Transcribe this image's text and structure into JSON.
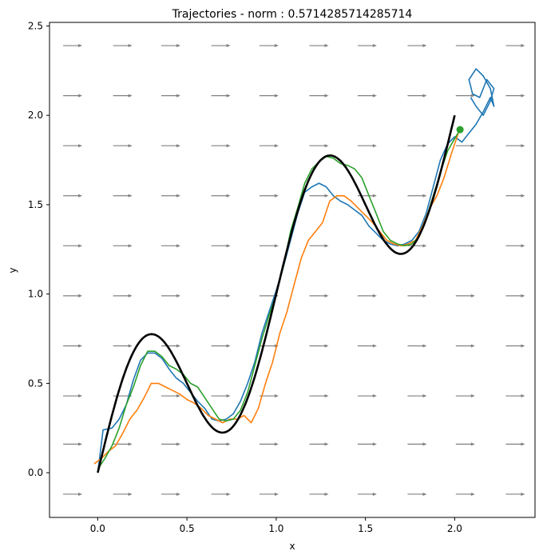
{
  "chart_data": {
    "type": "line",
    "title": "Trajectories - norm : 0.5714285714285714",
    "xlabel": "x",
    "ylabel": "y",
    "xlim": [
      -0.27,
      2.45
    ],
    "ylim": [
      -0.25,
      2.52
    ],
    "x_ticks": [
      "0.0",
      "0.5",
      "1.0",
      "1.5",
      "2.0"
    ],
    "y_ticks": [
      "0.0",
      "0.5",
      "1.0",
      "1.5",
      "2.0",
      "2.5"
    ],
    "grid": false,
    "colors": {
      "reference": "#000000",
      "blue": "#1f77b4",
      "orange": "#ff7f0e",
      "green": "#2ca02c",
      "quiver": "#808080"
    },
    "reference_curve": {
      "formula": "y = x + 0.5*sin(2*pi*x)",
      "x_range": [
        0,
        2
      ]
    },
    "quiver_field": {
      "direction": [
        1,
        0
      ],
      "x": [
        -0.14,
        0.14,
        0.41,
        0.69,
        0.96,
        1.24,
        1.51,
        1.79,
        2.06,
        2.34
      ],
      "y": [
        -0.12,
        0.16,
        0.43,
        0.71,
        0.99,
        1.27,
        1.55,
        1.83,
        2.11,
        2.39
      ]
    },
    "series": [
      {
        "color": "#1f77b4",
        "x": [
          0.0,
          0.03,
          0.08,
          0.12,
          0.16,
          0.2,
          0.24,
          0.28,
          0.32,
          0.36,
          0.4,
          0.44,
          0.48,
          0.52,
          0.56,
          0.6,
          0.64,
          0.68,
          0.72,
          0.76,
          0.8,
          0.84,
          0.88,
          0.92,
          0.96,
          1.0,
          1.04,
          1.08,
          1.12,
          1.16,
          1.2,
          1.24,
          1.28,
          1.32,
          1.36,
          1.4,
          1.44,
          1.48,
          1.52,
          1.56,
          1.6,
          1.64,
          1.68,
          1.72,
          1.76,
          1.8,
          1.84,
          1.88,
          1.92,
          1.96,
          2.0,
          2.04,
          2.08,
          2.12,
          2.16,
          2.2,
          2.22,
          2.2,
          2.16,
          2.12,
          2.08,
          2.1,
          2.14,
          2.18,
          2.22,
          2.2,
          2.16,
          2.12,
          2.09
        ],
        "y": [
          0.0,
          0.24,
          0.25,
          0.3,
          0.38,
          0.52,
          0.63,
          0.67,
          0.67,
          0.64,
          0.58,
          0.53,
          0.5,
          0.45,
          0.4,
          0.36,
          0.3,
          0.29,
          0.3,
          0.33,
          0.4,
          0.5,
          0.62,
          0.78,
          0.9,
          1.02,
          1.15,
          1.3,
          1.45,
          1.57,
          1.6,
          1.62,
          1.6,
          1.55,
          1.52,
          1.5,
          1.47,
          1.44,
          1.38,
          1.34,
          1.3,
          1.28,
          1.27,
          1.28,
          1.3,
          1.35,
          1.45,
          1.6,
          1.75,
          1.84,
          1.88,
          1.85,
          1.9,
          1.95,
          2.02,
          2.1,
          2.05,
          2.15,
          2.22,
          2.26,
          2.2,
          2.12,
          2.1,
          2.2,
          2.15,
          2.08,
          2.0,
          2.05,
          2.1
        ]
      },
      {
        "color": "#ff7f0e",
        "x": [
          -0.02,
          0.02,
          0.06,
          0.1,
          0.14,
          0.18,
          0.22,
          0.26,
          0.3,
          0.34,
          0.38,
          0.42,
          0.46,
          0.5,
          0.54,
          0.58,
          0.62,
          0.66,
          0.7,
          0.74,
          0.78,
          0.82,
          0.86,
          0.9,
          0.94,
          0.98,
          1.02,
          1.06,
          1.1,
          1.14,
          1.18,
          1.22,
          1.26,
          1.3,
          1.34,
          1.38,
          1.42,
          1.46,
          1.5,
          1.54,
          1.58,
          1.62,
          1.66,
          1.7,
          1.74,
          1.78,
          1.82,
          1.86,
          1.9,
          1.94,
          1.98,
          2.02
        ],
        "y": [
          0.05,
          0.08,
          0.12,
          0.15,
          0.22,
          0.3,
          0.35,
          0.42,
          0.5,
          0.5,
          0.48,
          0.46,
          0.44,
          0.41,
          0.39,
          0.36,
          0.32,
          0.3,
          0.28,
          0.3,
          0.3,
          0.32,
          0.28,
          0.36,
          0.5,
          0.62,
          0.78,
          0.9,
          1.05,
          1.2,
          1.3,
          1.35,
          1.4,
          1.52,
          1.55,
          1.55,
          1.52,
          1.48,
          1.44,
          1.4,
          1.35,
          1.3,
          1.28,
          1.27,
          1.28,
          1.3,
          1.38,
          1.48,
          1.55,
          1.65,
          1.78,
          1.9
        ]
      },
      {
        "color": "#2ca02c",
        "x": [
          0.0,
          0.04,
          0.08,
          0.12,
          0.16,
          0.2,
          0.24,
          0.28,
          0.32,
          0.36,
          0.4,
          0.44,
          0.48,
          0.52,
          0.56,
          0.6,
          0.64,
          0.68,
          0.72,
          0.76,
          0.8,
          0.84,
          0.88,
          0.92,
          0.96,
          1.0,
          1.04,
          1.08,
          1.12,
          1.16,
          1.2,
          1.24,
          1.28,
          1.32,
          1.36,
          1.4,
          1.44,
          1.48,
          1.52,
          1.56,
          1.6,
          1.64,
          1.68,
          1.72,
          1.76,
          1.8,
          1.84,
          1.88,
          1.92,
          1.96,
          2.0,
          2.03
        ],
        "y": [
          0.02,
          0.08,
          0.15,
          0.25,
          0.38,
          0.48,
          0.6,
          0.68,
          0.68,
          0.65,
          0.6,
          0.58,
          0.55,
          0.5,
          0.48,
          0.42,
          0.36,
          0.3,
          0.29,
          0.3,
          0.35,
          0.45,
          0.6,
          0.75,
          0.88,
          1.0,
          1.15,
          1.35,
          1.48,
          1.62,
          1.7,
          1.74,
          1.77,
          1.76,
          1.73,
          1.72,
          1.7,
          1.65,
          1.55,
          1.45,
          1.35,
          1.3,
          1.28,
          1.27,
          1.28,
          1.32,
          1.42,
          1.55,
          1.68,
          1.8,
          1.87,
          1.92
        ]
      }
    ],
    "endpoint_marker": {
      "x": 2.03,
      "y": 1.92,
      "color": "#2ca02c"
    }
  }
}
